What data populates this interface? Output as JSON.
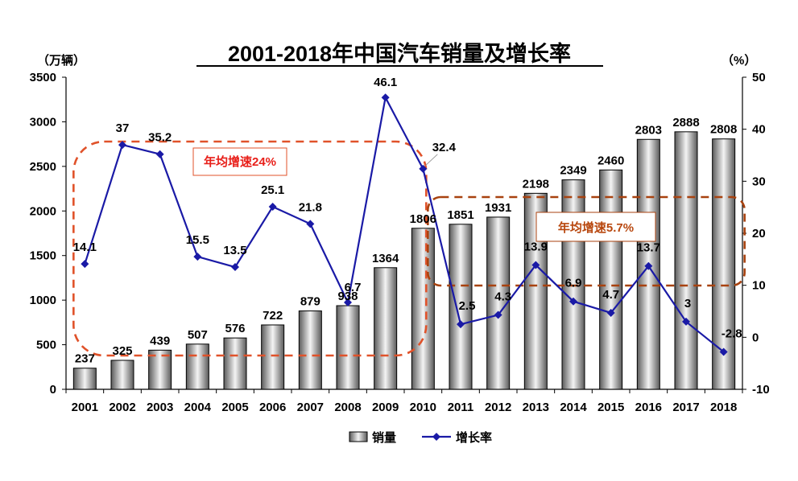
{
  "chart_data": {
    "type": "bar",
    "title": "2001-2018年中国汽车销量及增长率",
    "left_unit": "（万辆）",
    "right_unit": "（%）",
    "categories": [
      "2001",
      "2002",
      "2003",
      "2004",
      "2005",
      "2006",
      "2007",
      "2008",
      "2009",
      "2010",
      "2011",
      "2012",
      "2013",
      "2014",
      "2015",
      "2016",
      "2017",
      "2018"
    ],
    "series": [
      {
        "name": "销量",
        "type": "bar",
        "axis": "left",
        "values": [
          237,
          325,
          439,
          507,
          576,
          722,
          879,
          938,
          1364,
          1806,
          1851,
          1931,
          2198,
          2349,
          2460,
          2803,
          2888,
          2808
        ],
        "labels": [
          "237",
          "325",
          "439",
          "507",
          "576",
          "722",
          "879",
          "938",
          "1364",
          "1806",
          "1851",
          "1931",
          "2198",
          "2349",
          "2460",
          "2803",
          "2888",
          "2808"
        ]
      },
      {
        "name": "增长率",
        "type": "line",
        "axis": "right",
        "color": "#1a1aa6",
        "values": [
          14.1,
          37,
          35.2,
          15.5,
          13.5,
          25.1,
          21.8,
          6.7,
          46.1,
          32.4,
          2.5,
          4.3,
          13.9,
          6.9,
          4.7,
          13.7,
          3,
          -2.8
        ],
        "labels": [
          "14.1",
          "37",
          "35.2",
          "15.5",
          "13.5",
          "25.1",
          "21.8",
          "6.7",
          "46.1",
          "32.4",
          "2.5",
          "4.3",
          "13.9",
          "6.9",
          "4.7",
          "13.7",
          "3",
          "-2.8"
        ]
      }
    ],
    "y_left": {
      "lim": [
        0,
        3500
      ],
      "ticks": [
        "0",
        "500",
        "1000",
        "1500",
        "2000",
        "2500",
        "3000",
        "3500"
      ]
    },
    "y_right": {
      "lim": [
        -10,
        50
      ],
      "ticks": [
        "-10",
        "0",
        "10",
        "20",
        "30",
        "40",
        "50"
      ]
    },
    "annotations": [
      {
        "text": "年均增速24%",
        "color": "#e8201a",
        "period": "2001-2010"
      },
      {
        "text": "年均增速5.7%",
        "color": "#b8470e",
        "period": "2011-2018"
      }
    ],
    "legend": {
      "position": "bottom",
      "items": [
        "销量",
        "增长率"
      ]
    },
    "colors": {
      "line": "#1a1aa6",
      "dashed_box_1": "#e0522a",
      "dashed_box_2": "#a8420f"
    },
    "grid": false
  }
}
